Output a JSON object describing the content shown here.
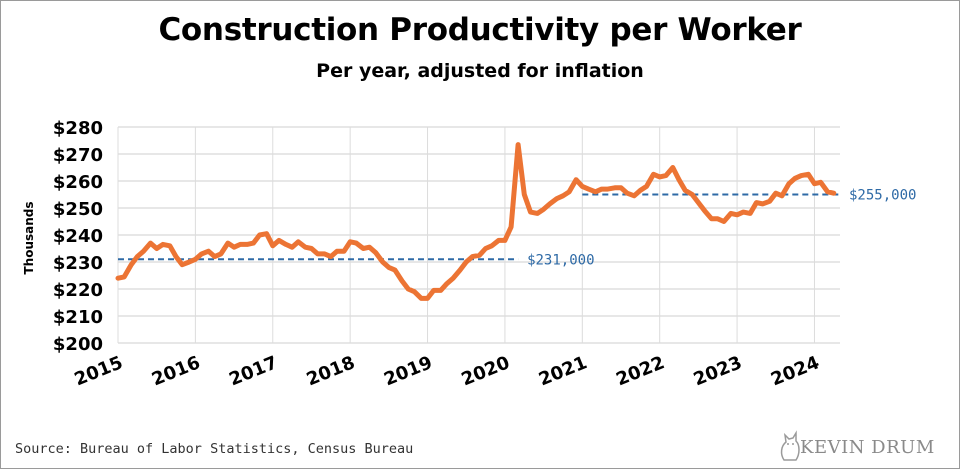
{
  "chart_data": {
    "type": "line",
    "title": "Construction Productivity per Worker",
    "subtitle": "Per year, adjusted for inflation",
    "ylabel": "Thousands",
    "ylim": [
      200,
      280
    ],
    "xlim": [
      2015.0,
      2024.33
    ],
    "y_ticks": [
      {
        "value": 200,
        "label": "$200"
      },
      {
        "value": 210,
        "label": "$210"
      },
      {
        "value": 220,
        "label": "$220"
      },
      {
        "value": 230,
        "label": "$230"
      },
      {
        "value": 240,
        "label": "$240"
      },
      {
        "value": 250,
        "label": "$250"
      },
      {
        "value": 260,
        "label": "$260"
      },
      {
        "value": 270,
        "label": "$270"
      },
      {
        "value": 280,
        "label": "$280"
      }
    ],
    "x_ticks": [
      {
        "value": 2015,
        "label": "2015"
      },
      {
        "value": 2016,
        "label": "2016"
      },
      {
        "value": 2017,
        "label": "2017"
      },
      {
        "value": 2018,
        "label": "2018"
      },
      {
        "value": 2019,
        "label": "2019"
      },
      {
        "value": 2020,
        "label": "2020"
      },
      {
        "value": 2021,
        "label": "2021"
      },
      {
        "value": 2022,
        "label": "2022"
      },
      {
        "value": 2023,
        "label": "2023"
      },
      {
        "value": 2024,
        "label": "2024"
      }
    ],
    "grid": "horizontal",
    "series": [
      {
        "color": "#ec7434",
        "points": [
          [
            2015.0,
            224
          ],
          [
            2015.08,
            224.5
          ],
          [
            2015.17,
            229
          ],
          [
            2015.25,
            232
          ],
          [
            2015.33,
            234
          ],
          [
            2015.42,
            237
          ],
          [
            2015.5,
            235
          ],
          [
            2015.58,
            236.5
          ],
          [
            2015.67,
            236
          ],
          [
            2015.75,
            232
          ],
          [
            2015.83,
            229
          ],
          [
            2015.92,
            230
          ],
          [
            2016.0,
            231
          ],
          [
            2016.08,
            233
          ],
          [
            2016.17,
            234
          ],
          [
            2016.25,
            232
          ],
          [
            2016.33,
            233
          ],
          [
            2016.42,
            237
          ],
          [
            2016.5,
            235.5
          ],
          [
            2016.58,
            236.5
          ],
          [
            2016.67,
            236.5
          ],
          [
            2016.75,
            237
          ],
          [
            2016.83,
            240
          ],
          [
            2016.92,
            240.5
          ],
          [
            2017.0,
            236
          ],
          [
            2017.08,
            238
          ],
          [
            2017.17,
            236.5
          ],
          [
            2017.25,
            235.5
          ],
          [
            2017.33,
            237.5
          ],
          [
            2017.42,
            235.5
          ],
          [
            2017.5,
            235
          ],
          [
            2017.58,
            233
          ],
          [
            2017.67,
            233
          ],
          [
            2017.75,
            232
          ],
          [
            2017.83,
            234
          ],
          [
            2017.92,
            234
          ],
          [
            2018.0,
            237.5
          ],
          [
            2018.08,
            237
          ],
          [
            2018.17,
            235
          ],
          [
            2018.25,
            235.5
          ],
          [
            2018.33,
            233.5
          ],
          [
            2018.42,
            230
          ],
          [
            2018.5,
            228
          ],
          [
            2018.58,
            227
          ],
          [
            2018.67,
            223
          ],
          [
            2018.75,
            220
          ],
          [
            2018.83,
            219
          ],
          [
            2018.92,
            216.5
          ],
          [
            2019.0,
            216.5
          ],
          [
            2019.08,
            219.5
          ],
          [
            2019.17,
            219.5
          ],
          [
            2019.25,
            222
          ],
          [
            2019.33,
            224
          ],
          [
            2019.42,
            227
          ],
          [
            2019.5,
            230
          ],
          [
            2019.58,
            232
          ],
          [
            2019.67,
            232.5
          ],
          [
            2019.75,
            235
          ],
          [
            2019.83,
            236
          ],
          [
            2019.92,
            238
          ],
          [
            2020.0,
            238
          ],
          [
            2020.08,
            243
          ],
          [
            2020.17,
            273.5
          ],
          [
            2020.25,
            255
          ],
          [
            2020.33,
            248.5
          ],
          [
            2020.42,
            248
          ],
          [
            2020.5,
            249.5
          ],
          [
            2020.58,
            251.5
          ],
          [
            2020.67,
            253.5
          ],
          [
            2020.75,
            254.5
          ],
          [
            2020.83,
            256
          ],
          [
            2020.92,
            260.5
          ],
          [
            2021.0,
            258
          ],
          [
            2021.08,
            257
          ],
          [
            2021.17,
            256
          ],
          [
            2021.25,
            257
          ],
          [
            2021.33,
            257
          ],
          [
            2021.42,
            257.5
          ],
          [
            2021.5,
            257.5
          ],
          [
            2021.58,
            255.5
          ],
          [
            2021.67,
            254.5
          ],
          [
            2021.75,
            256.5
          ],
          [
            2021.83,
            258
          ],
          [
            2021.92,
            262.5
          ],
          [
            2022.0,
            261.5
          ],
          [
            2022.08,
            262
          ],
          [
            2022.17,
            265
          ],
          [
            2022.25,
            260.5
          ],
          [
            2022.33,
            256.5
          ],
          [
            2022.42,
            255
          ],
          [
            2022.5,
            252
          ],
          [
            2022.58,
            249
          ],
          [
            2022.67,
            246
          ],
          [
            2022.75,
            246
          ],
          [
            2022.83,
            245
          ],
          [
            2022.92,
            248
          ],
          [
            2023.0,
            247.5
          ],
          [
            2023.08,
            248.5
          ],
          [
            2023.17,
            248
          ],
          [
            2023.25,
            252
          ],
          [
            2023.33,
            251.5
          ],
          [
            2023.42,
            252.5
          ],
          [
            2023.5,
            255.5
          ],
          [
            2023.58,
            254.5
          ],
          [
            2023.67,
            259
          ],
          [
            2023.75,
            261
          ],
          [
            2023.83,
            262
          ],
          [
            2023.92,
            262.5
          ],
          [
            2024.0,
            259
          ],
          [
            2024.08,
            259.5
          ],
          [
            2024.17,
            256
          ],
          [
            2024.25,
            255.5
          ]
        ]
      }
    ],
    "reference_lines": [
      {
        "value": 231,
        "x_start": 2015.0,
        "x_end": 2020.17,
        "label": "$231,000",
        "color": "#2e6aa6"
      },
      {
        "value": 255,
        "x_start": 2021.0,
        "x_end": 2024.33,
        "label": "$255,000",
        "color": "#2e6aa6"
      }
    ]
  },
  "footer": {
    "source": "Source: Bureau of Labor Statistics, Census Bureau",
    "logo_text": "KEVIN DRUM"
  }
}
